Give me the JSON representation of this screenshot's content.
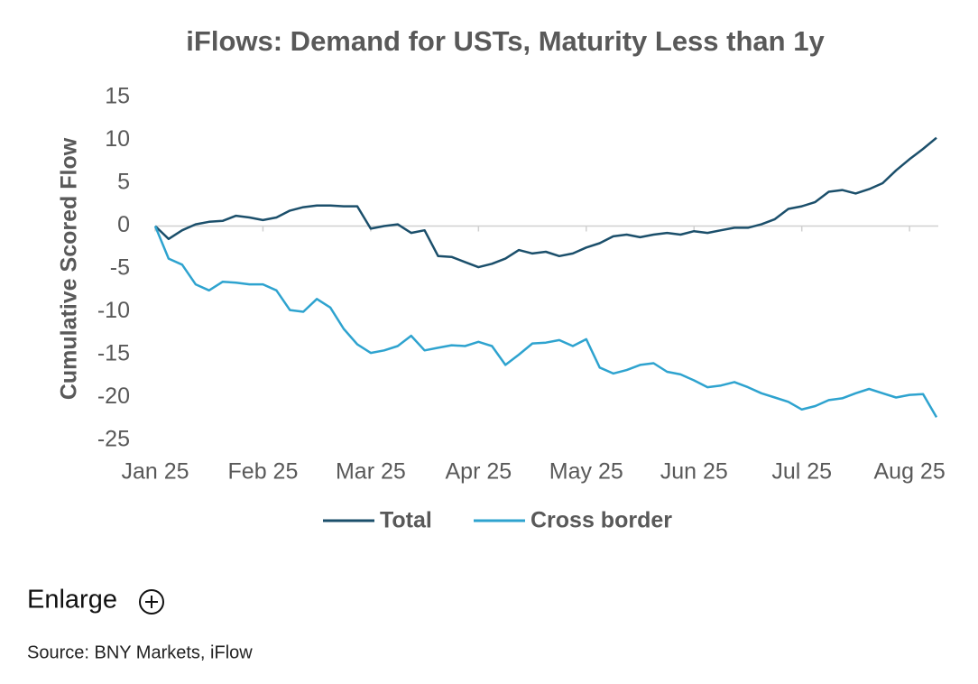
{
  "chart_data": {
    "type": "line",
    "title": "iFlows: Demand for USTs, Maturity Less than 1y",
    "y_label": "Cumulative Scored Flow",
    "categories": [
      "Jan 25",
      null,
      null,
      null,
      null,
      null,
      null,
      null,
      "Feb 25",
      null,
      null,
      null,
      null,
      null,
      null,
      null,
      "Mar 25",
      null,
      null,
      null,
      null,
      null,
      null,
      null,
      "Apr 25",
      null,
      null,
      null,
      null,
      null,
      null,
      null,
      "May 25",
      null,
      null,
      null,
      null,
      null,
      null,
      null,
      "Jun 25",
      null,
      null,
      null,
      null,
      null,
      null,
      null,
      "Jul 25",
      null,
      null,
      null,
      null,
      null,
      null,
      null,
      "Aug 25",
      null,
      null
    ],
    "series": [
      {
        "name": "Total",
        "color": "#1b4f6b",
        "values": [
          0,
          -1.5,
          -0.5,
          0.2,
          0.5,
          0.6,
          1.2,
          1.0,
          0.7,
          1.0,
          1.8,
          2.2,
          2.4,
          2.4,
          2.3,
          2.3,
          -0.3,
          0.0,
          0.2,
          -0.8,
          -0.5,
          -3.5,
          -3.6,
          -4.2,
          -4.8,
          -4.4,
          -3.8,
          -2.8,
          -3.2,
          -3.0,
          -3.5,
          -3.2,
          -2.5,
          -2.0,
          -1.2,
          -1.0,
          -1.3,
          -1.0,
          -0.8,
          -1.0,
          -0.6,
          -0.8,
          -0.5,
          -0.2,
          -0.2,
          0.2,
          0.8,
          2.0,
          2.3,
          2.8,
          4.0,
          4.2,
          3.8,
          4.3,
          5.0,
          6.5,
          7.8,
          9.0,
          10.3
        ]
      },
      {
        "name": "Cross border",
        "color": "#2ea3cf",
        "values": [
          0,
          -3.8,
          -4.5,
          -6.8,
          -7.5,
          -6.5,
          -6.6,
          -6.8,
          -6.8,
          -7.5,
          -9.8,
          -10.0,
          -8.5,
          -9.5,
          -12.0,
          -13.8,
          -14.8,
          -14.5,
          -14.0,
          -12.8,
          -14.5,
          -14.2,
          -13.9,
          -14.0,
          -13.5,
          -14.0,
          -16.2,
          -15.0,
          -13.7,
          -13.6,
          -13.3,
          -14.0,
          -13.2,
          -16.5,
          -17.2,
          -16.8,
          -16.2,
          -16.0,
          -17.0,
          -17.3,
          -18.0,
          -18.8,
          -18.6,
          -18.2,
          -18.8,
          -19.5,
          -20.0,
          -20.5,
          -21.4,
          -21.0,
          -20.3,
          -20.1,
          -19.5,
          -19.0,
          -19.5,
          -20.0,
          -19.7,
          -19.6,
          -22.3
        ]
      }
    ],
    "ylim": [
      -25,
      15
    ],
    "yticks": [
      -25,
      -20,
      -15,
      -10,
      -5,
      0,
      5,
      10,
      15
    ],
    "legend": "bottom",
    "grid": false
  },
  "page": {
    "enlarge": "Enlarge",
    "source": "Source: BNY Markets, iFlow"
  }
}
